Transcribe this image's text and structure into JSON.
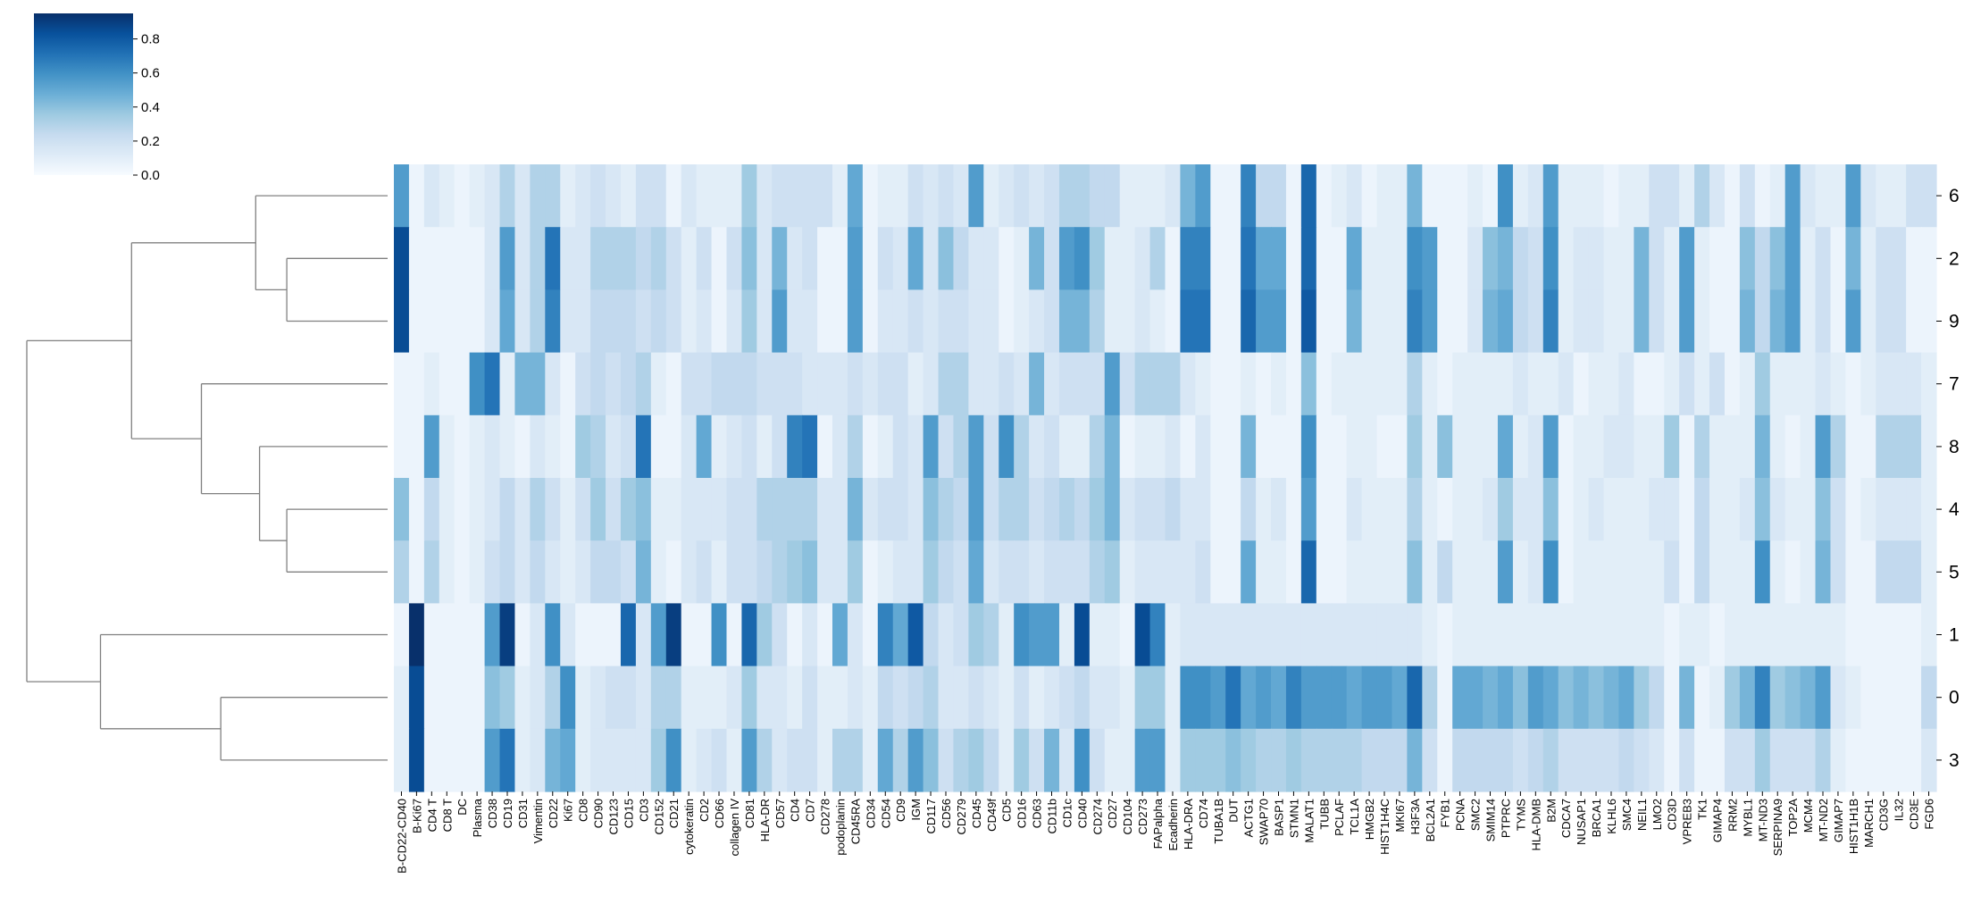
{
  "chart_data": {
    "type": "heatmap",
    "title": "",
    "xlabel": "",
    "ylabel": "",
    "colorscale": {
      "name": "Blues",
      "min": 0,
      "max": 0.95,
      "low_color": "#f7fbff",
      "high_color": "#08306b",
      "ticks": [
        "0.0",
        "0.2",
        "0.4",
        "0.6",
        "0.8"
      ]
    },
    "row_labels": [
      "6",
      "2",
      "9",
      "7",
      "8",
      "4",
      "5",
      "1",
      "0",
      "3"
    ],
    "column_labels": [
      "B-CD22-CD40",
      "B-Ki67",
      "CD4 T",
      "CD8 T",
      "DC",
      "Plasma",
      "CD38",
      "CD19",
      "CD31",
      "Vimentin",
      "CD22",
      "Ki67",
      "CD8",
      "CD90",
      "CD123",
      "CD15",
      "CD3",
      "CD152",
      "CD21",
      "cytokeratin",
      "CD2",
      "CD66",
      "collagen IV",
      "CD81",
      "HLA-DR",
      "CD57",
      "CD4",
      "CD7",
      "CD278",
      "podoplanin",
      "CD45RA",
      "CD34",
      "CD54",
      "CD9",
      "IGM",
      "CD117",
      "CD56",
      "CD279",
      "CD45",
      "CD49f",
      "CD5",
      "CD16",
      "CD63",
      "CD11b",
      "CD1c",
      "CD40",
      "CD274",
      "CD27",
      "CD104",
      "CD273",
      "FAPalpha",
      "Ecadherin",
      "HLA-DRA",
      "CD74",
      "TUBA1B",
      "DUT",
      "ACTG1",
      "SWAP70",
      "BASP1",
      "STMN1",
      "MALAT1",
      "TUBB",
      "PCLAF",
      "TCL1A",
      "HMGB2",
      "HIST1H4C",
      "MKI67",
      "H3F3A",
      "BCL2A1",
      "FYB1",
      "PCNA",
      "SMC2",
      "SMIM14",
      "PTPRC",
      "TYMS",
      "HLA-DMB",
      "B2M",
      "CDCA7",
      "NUSAP1",
      "BRCA1",
      "KLHL6",
      "SMC4",
      "NEIL1",
      "LMO2",
      "CD3D",
      "VPREB3",
      "TK1",
      "GIMAP4",
      "RRM2",
      "MYBL1",
      "MT-ND3",
      "SERPINA9",
      "TOP2A",
      "MCM4",
      "MT-ND2",
      "GIMAP7",
      "HIST1H1B",
      "MARCH1",
      "CD3G",
      "IL32",
      "CD3E",
      "FGD6"
    ],
    "values": [
      [
        0.55,
        0.05,
        0.15,
        0.1,
        0.05,
        0.1,
        0.15,
        0.3,
        0.15,
        0.3,
        0.3,
        0.1,
        0.15,
        0.2,
        0.15,
        0.1,
        0.2,
        0.2,
        0.05,
        0.15,
        0.1,
        0.1,
        0.1,
        0.35,
        0.15,
        0.2,
        0.2,
        0.2,
        0.2,
        0.1,
        0.5,
        0.05,
        0.1,
        0.1,
        0.2,
        0.15,
        0.2,
        0.15,
        0.55,
        0.1,
        0.15,
        0.2,
        0.15,
        0.2,
        0.3,
        0.3,
        0.25,
        0.25,
        0.1,
        0.1,
        0.1,
        0.15,
        0.45,
        0.55,
        0.05,
        0.05,
        0.65,
        0.25,
        0.25,
        0.05,
        0.75,
        0.05,
        0.1,
        0.15,
        0.05,
        0.1,
        0.1,
        0.45,
        0.05,
        0.05,
        0.05,
        0.1,
        0.05,
        0.6,
        0.1,
        0.15,
        0.55,
        0.1,
        0.1,
        0.1,
        0.05,
        0.1,
        0.1,
        0.2,
        0.2,
        0.1,
        0.3,
        0.15,
        0.05,
        0.2,
        0.05,
        0.1,
        0.55,
        0.15,
        0.1,
        0.1,
        0.55,
        0.15,
        0.1,
        0.1,
        0.2,
        0.2
      ],
      [
        0.85,
        0.05,
        0.05,
        0.05,
        0.05,
        0.05,
        0.15,
        0.55,
        0.15,
        0.3,
        0.7,
        0.15,
        0.15,
        0.3,
        0.3,
        0.3,
        0.25,
        0.3,
        0.2,
        0.1,
        0.2,
        0.05,
        0.2,
        0.4,
        0.15,
        0.45,
        0.15,
        0.2,
        0.05,
        0.05,
        0.55,
        0.05,
        0.2,
        0.15,
        0.5,
        0.15,
        0.4,
        0.25,
        0.15,
        0.15,
        0.05,
        0.1,
        0.45,
        0.2,
        0.55,
        0.6,
        0.35,
        0.1,
        0.1,
        0.15,
        0.3,
        0.05,
        0.65,
        0.65,
        0.05,
        0.05,
        0.7,
        0.5,
        0.5,
        0.05,
        0.75,
        0.05,
        0.05,
        0.5,
        0.1,
        0.1,
        0.1,
        0.6,
        0.55,
        0.05,
        0.05,
        0.15,
        0.4,
        0.45,
        0.25,
        0.2,
        0.6,
        0.1,
        0.15,
        0.15,
        0.1,
        0.1,
        0.45,
        0.2,
        0.1,
        0.55,
        0.1,
        0.05,
        0.05,
        0.4,
        0.25,
        0.4,
        0.55,
        0.1,
        0.2,
        0.05,
        0.45,
        0.1,
        0.2,
        0.2,
        0.05,
        0.05
      ],
      [
        0.85,
        0.05,
        0.05,
        0.05,
        0.05,
        0.05,
        0.15,
        0.5,
        0.15,
        0.3,
        0.65,
        0.15,
        0.15,
        0.25,
        0.25,
        0.25,
        0.2,
        0.25,
        0.2,
        0.1,
        0.15,
        0.05,
        0.15,
        0.35,
        0.15,
        0.55,
        0.15,
        0.15,
        0.05,
        0.05,
        0.55,
        0.05,
        0.15,
        0.15,
        0.2,
        0.15,
        0.2,
        0.2,
        0.15,
        0.15,
        0.05,
        0.1,
        0.15,
        0.2,
        0.45,
        0.45,
        0.3,
        0.1,
        0.1,
        0.15,
        0.1,
        0.05,
        0.7,
        0.7,
        0.05,
        0.05,
        0.75,
        0.55,
        0.55,
        0.05,
        0.8,
        0.05,
        0.05,
        0.45,
        0.1,
        0.1,
        0.1,
        0.65,
        0.55,
        0.05,
        0.05,
        0.15,
        0.45,
        0.5,
        0.25,
        0.2,
        0.65,
        0.1,
        0.15,
        0.15,
        0.1,
        0.1,
        0.45,
        0.2,
        0.1,
        0.55,
        0.1,
        0.05,
        0.05,
        0.45,
        0.25,
        0.45,
        0.55,
        0.1,
        0.2,
        0.05,
        0.55,
        0.1,
        0.2,
        0.2,
        0.05,
        0.05
      ],
      [
        0.05,
        0.05,
        0.1,
        0.05,
        0.05,
        0.6,
        0.7,
        0.1,
        0.45,
        0.45,
        0.15,
        0.05,
        0.2,
        0.25,
        0.2,
        0.25,
        0.3,
        0.1,
        0.05,
        0.2,
        0.2,
        0.25,
        0.25,
        0.25,
        0.2,
        0.2,
        0.2,
        0.15,
        0.15,
        0.15,
        0.2,
        0.15,
        0.2,
        0.2,
        0.1,
        0.15,
        0.3,
        0.3,
        0.15,
        0.15,
        0.2,
        0.15,
        0.45,
        0.15,
        0.2,
        0.2,
        0.2,
        0.55,
        0.2,
        0.3,
        0.3,
        0.3,
        0.15,
        0.1,
        0.05,
        0.05,
        0.1,
        0.05,
        0.1,
        0.05,
        0.4,
        0.05,
        0.1,
        0.1,
        0.1,
        0.1,
        0.1,
        0.3,
        0.1,
        0.05,
        0.1,
        0.1,
        0.1,
        0.1,
        0.15,
        0.1,
        0.1,
        0.15,
        0.05,
        0.1,
        0.1,
        0.15,
        0.05,
        0.05,
        0.1,
        0.2,
        0.1,
        0.2,
        0.05,
        0.1,
        0.35,
        0.1,
        0.1,
        0.1,
        0.15,
        0.1,
        0.05,
        0.1,
        0.15,
        0.15,
        0.15,
        0.1
      ],
      [
        0.05,
        0.05,
        0.55,
        0.1,
        0.05,
        0.1,
        0.15,
        0.1,
        0.05,
        0.15,
        0.1,
        0.05,
        0.35,
        0.3,
        0.15,
        0.2,
        0.7,
        0.05,
        0.05,
        0.15,
        0.5,
        0.1,
        0.15,
        0.2,
        0.1,
        0.2,
        0.65,
        0.7,
        0.05,
        0.15,
        0.3,
        0.05,
        0.1,
        0.2,
        0.15,
        0.55,
        0.2,
        0.3,
        0.55,
        0.2,
        0.6,
        0.3,
        0.15,
        0.2,
        0.1,
        0.1,
        0.3,
        0.45,
        0.05,
        0.1,
        0.1,
        0.15,
        0.05,
        0.15,
        0.05,
        0.05,
        0.45,
        0.05,
        0.05,
        0.05,
        0.6,
        0.05,
        0.05,
        0.1,
        0.1,
        0.05,
        0.05,
        0.35,
        0.1,
        0.4,
        0.1,
        0.1,
        0.1,
        0.5,
        0.1,
        0.15,
        0.55,
        0.05,
        0.1,
        0.1,
        0.15,
        0.15,
        0.1,
        0.1,
        0.35,
        0.05,
        0.3,
        0.1,
        0.1,
        0.1,
        0.45,
        0.1,
        0.05,
        0.1,
        0.55,
        0.3,
        0.05,
        0.05,
        0.3,
        0.3,
        0.3,
        0.1
      ],
      [
        0.4,
        0.05,
        0.25,
        0.1,
        0.05,
        0.1,
        0.15,
        0.25,
        0.15,
        0.3,
        0.2,
        0.1,
        0.2,
        0.35,
        0.2,
        0.35,
        0.4,
        0.1,
        0.1,
        0.15,
        0.15,
        0.15,
        0.2,
        0.2,
        0.3,
        0.3,
        0.3,
        0.3,
        0.15,
        0.15,
        0.45,
        0.15,
        0.2,
        0.2,
        0.15,
        0.4,
        0.3,
        0.25,
        0.55,
        0.2,
        0.3,
        0.3,
        0.2,
        0.25,
        0.3,
        0.25,
        0.35,
        0.45,
        0.15,
        0.2,
        0.2,
        0.25,
        0.15,
        0.15,
        0.05,
        0.05,
        0.25,
        0.1,
        0.15,
        0.05,
        0.55,
        0.05,
        0.05,
        0.15,
        0.1,
        0.1,
        0.1,
        0.3,
        0.1,
        0.05,
        0.1,
        0.1,
        0.15,
        0.35,
        0.15,
        0.15,
        0.4,
        0.05,
        0.1,
        0.15,
        0.1,
        0.1,
        0.1,
        0.15,
        0.15,
        0.05,
        0.25,
        0.1,
        0.1,
        0.15,
        0.4,
        0.15,
        0.1,
        0.1,
        0.4,
        0.2,
        0.05,
        0.1,
        0.15,
        0.15,
        0.15,
        0.1
      ],
      [
        0.3,
        0.05,
        0.3,
        0.1,
        0.05,
        0.1,
        0.2,
        0.25,
        0.15,
        0.25,
        0.15,
        0.1,
        0.15,
        0.25,
        0.25,
        0.2,
        0.45,
        0.1,
        0.05,
        0.15,
        0.2,
        0.1,
        0.2,
        0.2,
        0.25,
        0.3,
        0.35,
        0.4,
        0.15,
        0.15,
        0.35,
        0.05,
        0.1,
        0.15,
        0.15,
        0.35,
        0.25,
        0.2,
        0.5,
        0.15,
        0.2,
        0.2,
        0.15,
        0.2,
        0.2,
        0.2,
        0.3,
        0.35,
        0.1,
        0.15,
        0.15,
        0.15,
        0.15,
        0.2,
        0.05,
        0.05,
        0.5,
        0.1,
        0.1,
        0.05,
        0.75,
        0.05,
        0.05,
        0.1,
        0.1,
        0.1,
        0.1,
        0.4,
        0.1,
        0.25,
        0.1,
        0.1,
        0.1,
        0.55,
        0.1,
        0.15,
        0.6,
        0.05,
        0.1,
        0.1,
        0.1,
        0.1,
        0.1,
        0.1,
        0.2,
        0.05,
        0.25,
        0.1,
        0.1,
        0.1,
        0.6,
        0.1,
        0.05,
        0.1,
        0.45,
        0.2,
        0.05,
        0.05,
        0.25,
        0.25,
        0.25,
        0.1
      ],
      [
        0.05,
        0.95,
        0.05,
        0.05,
        0.05,
        0.05,
        0.55,
        0.9,
        0.05,
        0.15,
        0.6,
        0.15,
        0.05,
        0.05,
        0.05,
        0.75,
        0.15,
        0.55,
        0.9,
        0.05,
        0.05,
        0.6,
        0.05,
        0.75,
        0.35,
        0.2,
        0.05,
        0.15,
        0.05,
        0.5,
        0.15,
        0.05,
        0.65,
        0.5,
        0.8,
        0.25,
        0.15,
        0.2,
        0.35,
        0.3,
        0.1,
        0.6,
        0.55,
        0.55,
        0.1,
        0.85,
        0.1,
        0.1,
        0.05,
        0.85,
        0.65,
        0.1,
        0.15,
        0.15,
        0.15,
        0.15,
        0.15,
        0.15,
        0.15,
        0.15,
        0.15,
        0.15,
        0.15,
        0.15,
        0.15,
        0.15,
        0.15,
        0.15,
        0.1,
        0.05,
        0.1,
        0.1,
        0.1,
        0.1,
        0.1,
        0.1,
        0.1,
        0.1,
        0.1,
        0.1,
        0.1,
        0.1,
        0.1,
        0.1,
        0.05,
        0.1,
        0.1,
        0.05,
        0.1,
        0.1,
        0.1,
        0.1,
        0.1,
        0.1,
        0.1,
        0.1,
        0.05,
        0.05,
        0.05,
        0.05,
        0.05,
        0.1
      ],
      [
        0.1,
        0.85,
        0.05,
        0.05,
        0.05,
        0.05,
        0.4,
        0.35,
        0.1,
        0.15,
        0.3,
        0.6,
        0.1,
        0.15,
        0.2,
        0.2,
        0.15,
        0.3,
        0.3,
        0.1,
        0.1,
        0.1,
        0.15,
        0.35,
        0.15,
        0.15,
        0.1,
        0.2,
        0.1,
        0.1,
        0.15,
        0.1,
        0.25,
        0.2,
        0.25,
        0.3,
        0.15,
        0.15,
        0.2,
        0.15,
        0.1,
        0.2,
        0.1,
        0.15,
        0.2,
        0.25,
        0.15,
        0.15,
        0.1,
        0.35,
        0.35,
        0.1,
        0.6,
        0.6,
        0.55,
        0.7,
        0.5,
        0.55,
        0.5,
        0.65,
        0.55,
        0.55,
        0.55,
        0.5,
        0.55,
        0.55,
        0.5,
        0.75,
        0.3,
        0.05,
        0.5,
        0.5,
        0.45,
        0.5,
        0.4,
        0.55,
        0.5,
        0.4,
        0.45,
        0.4,
        0.45,
        0.5,
        0.35,
        0.25,
        0.05,
        0.45,
        0.05,
        0.1,
        0.35,
        0.45,
        0.65,
        0.35,
        0.4,
        0.45,
        0.55,
        0.15,
        0.1,
        0.05,
        0.05,
        0.05,
        0.05,
        0.25
      ],
      [
        0.1,
        0.85,
        0.05,
        0.05,
        0.05,
        0.05,
        0.55,
        0.7,
        0.1,
        0.15,
        0.45,
        0.5,
        0.1,
        0.15,
        0.15,
        0.15,
        0.15,
        0.35,
        0.6,
        0.1,
        0.15,
        0.2,
        0.1,
        0.55,
        0.3,
        0.15,
        0.2,
        0.2,
        0.1,
        0.3,
        0.3,
        0.1,
        0.5,
        0.3,
        0.55,
        0.4,
        0.2,
        0.3,
        0.35,
        0.25,
        0.1,
        0.35,
        0.2,
        0.45,
        0.15,
        0.6,
        0.2,
        0.1,
        0.1,
        0.55,
        0.55,
        0.1,
        0.35,
        0.35,
        0.35,
        0.4,
        0.35,
        0.3,
        0.3,
        0.35,
        0.3,
        0.3,
        0.3,
        0.3,
        0.25,
        0.25,
        0.25,
        0.45,
        0.2,
        0.05,
        0.25,
        0.25,
        0.25,
        0.25,
        0.2,
        0.25,
        0.3,
        0.2,
        0.2,
        0.2,
        0.2,
        0.25,
        0.2,
        0.15,
        0.05,
        0.2,
        0.05,
        0.05,
        0.2,
        0.2,
        0.35,
        0.2,
        0.2,
        0.2,
        0.3,
        0.1,
        0.05,
        0.05,
        0.05,
        0.05,
        0.05,
        0.15
      ]
    ],
    "row_dendrogram": [
      {
        "a": "2",
        "b": "9",
        "height": 0.26
      },
      {
        "a": "6",
        "b": "(2,9)",
        "height": 0.34
      },
      {
        "a": "4",
        "b": "5",
        "height": 0.26
      },
      {
        "a": "8",
        "b": "(4,5)",
        "height": 0.33
      },
      {
        "a": "7",
        "b": "(8,(4,5))",
        "height": 0.48
      },
      {
        "a": "(6,(2,9))",
        "b": "(7,(8,(4,5)))",
        "height": 0.66
      },
      {
        "a": "0",
        "b": "3",
        "height": 0.43
      },
      {
        "a": "1",
        "b": "(0,3)",
        "height": 0.74
      },
      {
        "a": "upper",
        "b": "lower",
        "height": 0.93
      }
    ]
  }
}
